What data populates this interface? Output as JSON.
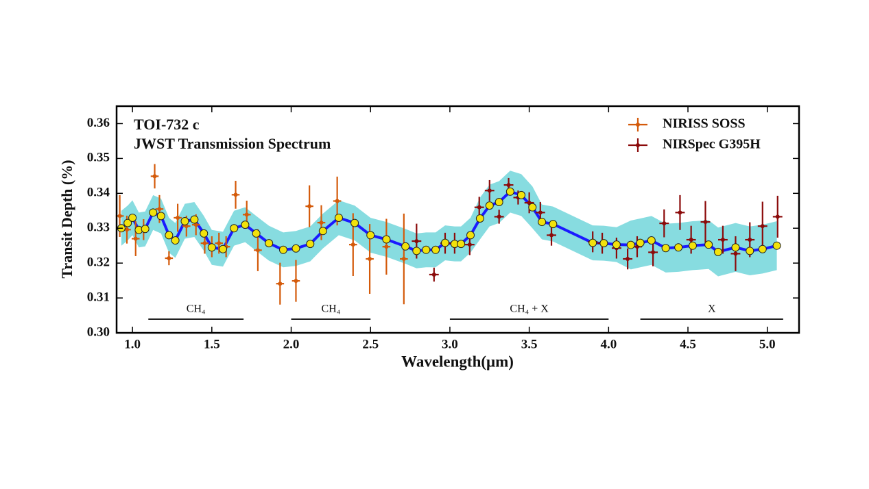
{
  "chart_data": {
    "type": "errorbar",
    "title": "TOI-732 c",
    "subtitle": "JWST Transmission Spectrum",
    "xlabel": "Wavelength(μm)",
    "ylabel": "Transit Depth (%)",
    "xlim": [
      0.9,
      5.2
    ],
    "ylim": [
      0.3,
      0.365
    ],
    "xticks": [
      {
        "value": 1,
        "label": "1.0"
      },
      1.5,
      {
        "value": 2,
        "label": "2.0"
      },
      2.5,
      {
        "value": 3,
        "label": "3.0"
      },
      3.5,
      {
        "value": 4,
        "label": "4.0"
      },
      4.5,
      {
        "value": 5,
        "label": "5.0"
      }
    ],
    "yticks": [
      {
        "value": 0.3,
        "label": "0.30"
      },
      0.31,
      0.32,
      0.33,
      0.34,
      0.35,
      0.36
    ],
    "legend": "upper right",
    "series": [
      {
        "name": "NIRISS SOSS",
        "color": "#d45a0a",
        "xerr": 0.025,
        "x": [
          0.92,
          0.965,
          1.02,
          1.07,
          1.14,
          1.17,
          1.23,
          1.285,
          1.34,
          1.4,
          1.455,
          1.5,
          1.545,
          1.59,
          1.65,
          1.72,
          1.79,
          1.93,
          2.03,
          2.115,
          2.19,
          2.29,
          2.39,
          2.495,
          2.6,
          2.71
        ],
        "values": [
          0.3335,
          0.3296,
          0.327,
          0.3296,
          0.3449,
          0.3355,
          0.3214,
          0.333,
          0.3306,
          0.331,
          0.3257,
          0.3247,
          0.3257,
          0.3247,
          0.3396,
          0.3339,
          0.3237,
          0.3141,
          0.3149,
          0.3363,
          0.3316,
          0.3378,
          0.3253,
          0.3212,
          0.3247,
          0.3212
        ],
        "yerr": [
          0.006,
          0.004,
          0.005,
          0.003,
          0.0035,
          0.004,
          0.002,
          0.004,
          0.003,
          0.003,
          0.003,
          0.003,
          0.003,
          0.003,
          0.004,
          0.004,
          0.006,
          0.006,
          0.006,
          0.006,
          0.005,
          0.007,
          0.009,
          0.01,
          0.008,
          0.013
        ]
      },
      {
        "name": "NIRSpec G395H",
        "color": "#8b0a0a",
        "xerr": 0.03,
        "x": [
          2.79,
          2.9,
          2.97,
          3.03,
          3.125,
          3.185,
          3.25,
          3.31,
          3.37,
          3.43,
          3.5,
          3.57,
          3.64,
          3.9,
          3.96,
          4.05,
          4.12,
          4.18,
          4.28,
          4.35,
          4.45,
          4.52,
          4.61,
          4.72,
          4.8,
          4.89,
          4.97,
          5.065
        ],
        "values": [
          0.3263,
          0.3167,
          0.3257,
          0.3257,
          0.3253,
          0.336,
          0.3408,
          0.3333,
          0.3424,
          0.3388,
          0.3373,
          0.3345,
          0.328,
          0.3261,
          0.3257,
          0.3243,
          0.3212,
          0.3247,
          0.3231,
          0.3314,
          0.3345,
          0.3267,
          0.3318,
          0.3267,
          0.3227,
          0.3267,
          0.3306,
          0.3333
        ],
        "yerr": [
          0.005,
          0.002,
          0.003,
          0.003,
          0.003,
          0.003,
          0.003,
          0.002,
          0.002,
          0.002,
          0.003,
          0.003,
          0.003,
          0.003,
          0.003,
          0.003,
          0.003,
          0.003,
          0.004,
          0.004,
          0.005,
          0.004,
          0.006,
          0.004,
          0.005,
          0.005,
          0.007,
          0.006
        ]
      }
    ],
    "model": {
      "color": "#1a1aff",
      "band_color": "#5fd0d6",
      "point_color": "#f2e20c",
      "x": [
        0.93,
        0.97,
        1.0,
        1.04,
        1.08,
        1.13,
        1.18,
        1.23,
        1.27,
        1.33,
        1.39,
        1.45,
        1.5,
        1.57,
        1.64,
        1.71,
        1.78,
        1.86,
        1.95,
        2.03,
        2.12,
        2.2,
        2.3,
        2.4,
        2.5,
        2.6,
        2.72,
        2.79,
        2.85,
        2.91,
        2.97,
        3.03,
        3.07,
        3.13,
        3.19,
        3.25,
        3.31,
        3.38,
        3.45,
        3.52,
        3.58,
        3.65,
        3.9,
        3.97,
        4.05,
        4.14,
        4.2,
        4.27,
        4.36,
        4.44,
        4.53,
        4.63,
        4.69,
        4.8,
        4.89,
        4.97,
        5.06
      ],
      "values": [
        0.33,
        0.3315,
        0.333,
        0.3295,
        0.3298,
        0.3345,
        0.3335,
        0.328,
        0.3265,
        0.332,
        0.3325,
        0.3285,
        0.3245,
        0.324,
        0.33,
        0.331,
        0.3285,
        0.3257,
        0.3238,
        0.3242,
        0.3255,
        0.3292,
        0.333,
        0.3315,
        0.328,
        0.3268,
        0.3248,
        0.3235,
        0.3238,
        0.3238,
        0.3258,
        0.3255,
        0.3255,
        0.328,
        0.3328,
        0.3365,
        0.3375,
        0.3405,
        0.3395,
        0.336,
        0.3318,
        0.3312,
        0.3258,
        0.3257,
        0.3253,
        0.3252,
        0.3258,
        0.3265,
        0.3243,
        0.3245,
        0.325,
        0.3253,
        0.3232,
        0.3245,
        0.3235,
        0.324,
        0.325
      ],
      "lower": [
        0.325,
        0.3265,
        0.328,
        0.3245,
        0.3248,
        0.3295,
        0.3285,
        0.323,
        0.3215,
        0.327,
        0.3275,
        0.3235,
        0.3195,
        0.319,
        0.325,
        0.326,
        0.3235,
        0.3207,
        0.3188,
        0.3192,
        0.3205,
        0.3242,
        0.328,
        0.3265,
        0.323,
        0.3218,
        0.3198,
        0.3185,
        0.3188,
        0.3188,
        0.3208,
        0.3205,
        0.3205,
        0.323,
        0.3268,
        0.3305,
        0.3315,
        0.3345,
        0.3335,
        0.33,
        0.3268,
        0.3262,
        0.3208,
        0.3207,
        0.3203,
        0.3182,
        0.3188,
        0.3195,
        0.3173,
        0.3175,
        0.318,
        0.3183,
        0.3162,
        0.3175,
        0.3165,
        0.317,
        0.318
      ],
      "upper": [
        0.335,
        0.3365,
        0.338,
        0.3345,
        0.3348,
        0.3395,
        0.3385,
        0.333,
        0.3315,
        0.337,
        0.3375,
        0.3335,
        0.3295,
        0.329,
        0.335,
        0.336,
        0.3335,
        0.3307,
        0.3288,
        0.3292,
        0.3305,
        0.3342,
        0.338,
        0.3365,
        0.333,
        0.3318,
        0.3298,
        0.3285,
        0.3288,
        0.3288,
        0.3308,
        0.3305,
        0.3305,
        0.333,
        0.3388,
        0.3425,
        0.3435,
        0.3465,
        0.3455,
        0.342,
        0.3368,
        0.3362,
        0.3308,
        0.3307,
        0.3303,
        0.3322,
        0.3328,
        0.3335,
        0.3313,
        0.3315,
        0.332,
        0.3323,
        0.3302,
        0.3315,
        0.3305,
        0.331,
        0.332
      ]
    },
    "annotations": [
      {
        "label": "CH₄",
        "x": [
          1.1,
          1.7
        ]
      },
      {
        "label": "CH₄",
        "x": [
          2.0,
          2.5
        ]
      },
      {
        "label": "CH₄ + X",
        "x": [
          3.0,
          4.0
        ]
      },
      {
        "label": "X",
        "x": [
          4.2,
          5.1
        ]
      }
    ]
  }
}
